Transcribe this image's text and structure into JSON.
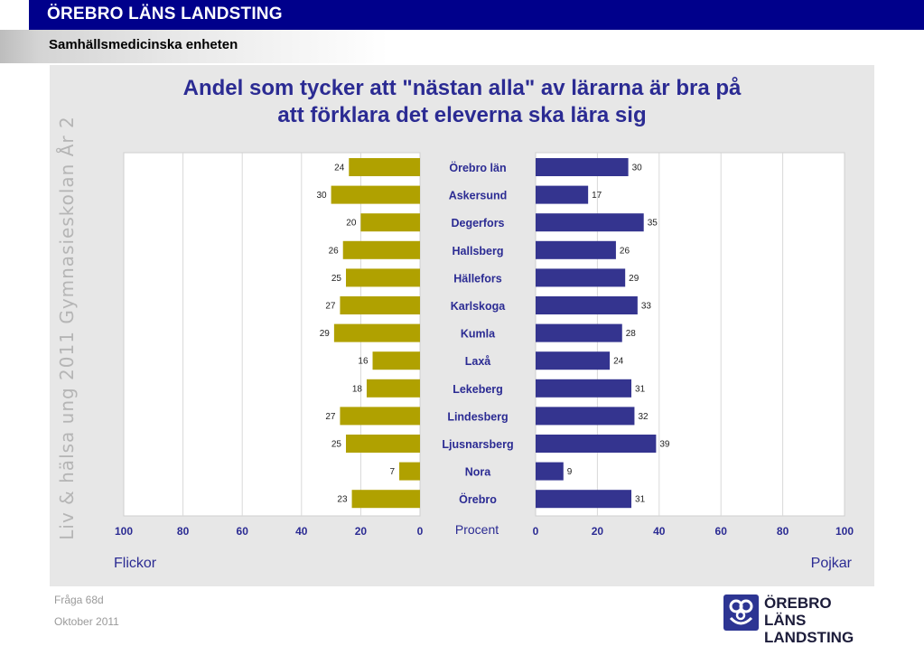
{
  "header": {
    "org": "ÖREBRO LÄNS LANDSTING",
    "unit": "Samhällsmedicinska enheten"
  },
  "side_label": "Liv & hälsa ung 2011 Gymnasieskolan År 2",
  "chart_data": {
    "type": "bar",
    "orientation": "horizontal-butterfly",
    "title_line1": "Andel som tycker att \"nästan alla\" av lärarna är bra på",
    "title_line2": "att förklara det eleverna ska lära sig",
    "categories": [
      "Örebro län",
      "Askersund",
      "Degerfors",
      "Hallsberg",
      "Hällefors",
      "Karlskoga",
      "Kumla",
      "Laxå",
      "Lekeberg",
      "Lindesberg",
      "Ljusnarsberg",
      "Nora",
      "Örebro"
    ],
    "series": [
      {
        "name": "Flickor",
        "color": "#b0a100",
        "values": [
          24,
          30,
          20,
          26,
          25,
          27,
          29,
          16,
          18,
          27,
          25,
          7,
          23
        ]
      },
      {
        "name": "Pojkar",
        "color": "#34348f",
        "values": [
          30,
          17,
          35,
          26,
          29,
          33,
          28,
          24,
          31,
          32,
          39,
          9,
          31
        ]
      }
    ],
    "left_ticks": [
      "100",
      "80",
      "60",
      "40",
      "20",
      "0"
    ],
    "right_ticks": [
      "0",
      "20",
      "40",
      "60",
      "80",
      "100"
    ],
    "xlabel": "Procent",
    "xlim": [
      0,
      100
    ],
    "grid": true
  },
  "footer": {
    "question": "Fråga 68d",
    "date": "Oktober 2011"
  },
  "logo": {
    "line1": "ÖREBRO LÄNS",
    "line2": "LANDSTING"
  }
}
